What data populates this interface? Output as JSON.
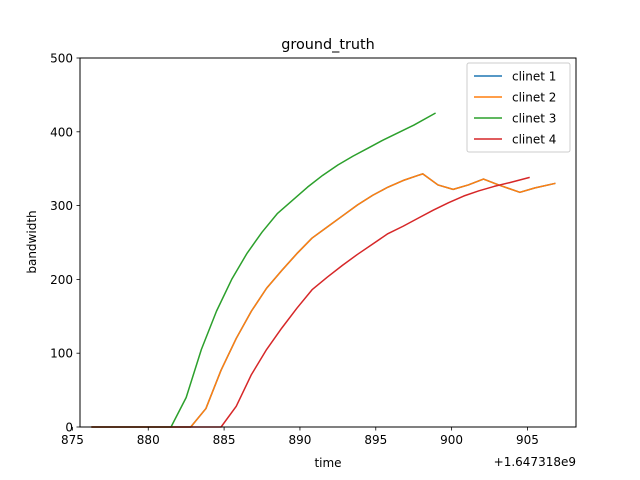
{
  "chart_data": {
    "type": "line",
    "title": "ground_truth",
    "xlabel": "time",
    "ylabel": "bandwidth",
    "x_offset_label": "+1.647318e9",
    "xlim": [
      875.5,
      908.2
    ],
    "ylim": [
      0,
      500
    ],
    "xticks": [
      875,
      880,
      885,
      890,
      895,
      900,
      905
    ],
    "yticks": [
      0,
      100,
      200,
      300,
      400,
      500
    ],
    "grid": false,
    "legend_position": "upper right",
    "series": [
      {
        "name": "clinet 1",
        "color": "#1f77b4",
        "x": [
          876.3,
          877.3,
          878.3,
          879.3,
          880.3,
          881.3,
          882.8,
          883.8,
          884.8,
          885.8,
          886.8,
          887.8,
          888.8,
          889.8,
          890.8,
          891.8,
          892.8,
          893.8,
          894.8,
          895.8,
          896.8,
          897.8,
          898.1,
          899.1,
          900.1,
          901.1,
          902.1,
          903.1,
          904.5,
          905.5,
          906.8
        ],
        "y": [
          0,
          0,
          0,
          0,
          0,
          0,
          0,
          25,
          77,
          120,
          157,
          188,
          212,
          235,
          256,
          271,
          286,
          301,
          314,
          325,
          334,
          341,
          343,
          328,
          322,
          328,
          336,
          328,
          318,
          324,
          330
        ]
      },
      {
        "name": "clinet 2",
        "color": "#ff7f0e",
        "x": [
          876.3,
          877.3,
          878.3,
          879.3,
          880.3,
          881.3,
          882.8,
          883.8,
          884.8,
          885.8,
          886.8,
          887.8,
          888.8,
          889.8,
          890.8,
          891.8,
          892.8,
          893.8,
          894.8,
          895.8,
          896.8,
          897.8,
          898.1,
          899.1,
          900.1,
          901.1,
          902.1,
          903.1,
          904.5,
          905.5,
          906.8
        ],
        "y": [
          0,
          0,
          0,
          0,
          0,
          0,
          0,
          25,
          77,
          120,
          157,
          188,
          212,
          235,
          256,
          271,
          286,
          301,
          314,
          325,
          334,
          341,
          343,
          328,
          322,
          328,
          336,
          328,
          318,
          324,
          330
        ]
      },
      {
        "name": "clinet 3",
        "color": "#2ca02c",
        "x": [
          876.3,
          877.3,
          878.3,
          879.3,
          880.3,
          881.5,
          882.5,
          883.5,
          884.5,
          885.5,
          886.5,
          887.5,
          888.5,
          889.5,
          890.5,
          891.5,
          892.5,
          893.5,
          894.5,
          895.5,
          896.5,
          897.5,
          898.9
        ],
        "y": [
          0,
          0,
          0,
          0,
          0,
          0,
          40,
          105,
          157,
          200,
          235,
          264,
          289,
          307,
          325,
          341,
          355,
          367,
          378,
          389,
          399,
          409,
          425
        ]
      },
      {
        "name": "clinet 4",
        "color": "#d62728",
        "x": [
          876.3,
          877.3,
          878.3,
          879.3,
          880.3,
          881.3,
          882.3,
          883.3,
          884.8,
          885.8,
          886.8,
          887.8,
          888.8,
          889.8,
          890.8,
          891.8,
          892.8,
          893.8,
          894.8,
          895.8,
          896.8,
          897.8,
          898.8,
          899.8,
          900.8,
          901.8,
          902.8,
          903.8,
          905.1
        ],
        "y": [
          0,
          0,
          0,
          0,
          0,
          0,
          0,
          0,
          0,
          28,
          71,
          105,
          134,
          161,
          186,
          203,
          219,
          234,
          248,
          262,
          272,
          283,
          294,
          304,
          313,
          320,
          326,
          331,
          338
        ]
      }
    ]
  }
}
